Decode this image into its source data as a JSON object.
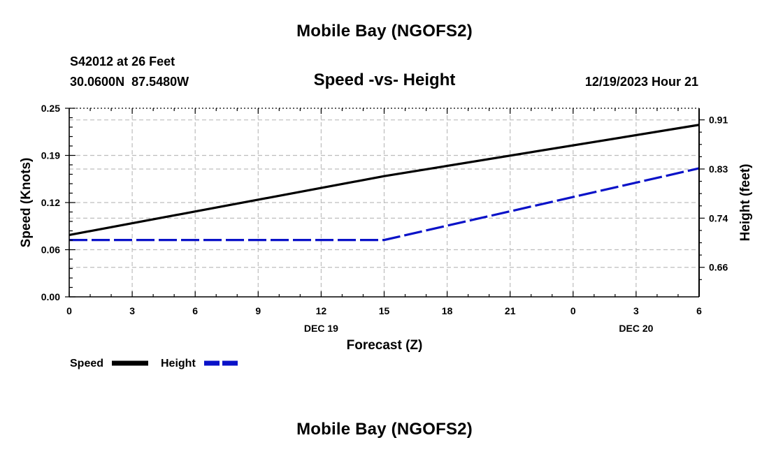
{
  "header": {
    "title": "Mobile Bay (NGOFS2)",
    "station": "S42012 at 26 Feet",
    "coords": "30.0600N  87.5480W",
    "subtitle": "Speed -vs- Height",
    "date": "12/19/2023 Hour 21"
  },
  "footer": {
    "title": "Mobile Bay (NGOFS2)"
  },
  "colors": {
    "speed": "#000000",
    "height": "#0a12c8",
    "grid": "#bdbdbd"
  },
  "chart_data": {
    "type": "line",
    "title": "Speed -vs- Height",
    "xlabel": "Forecast (Z)",
    "ylabel": "Speed (Knots)",
    "y2label": "Height (feet)",
    "x": [
      0,
      3,
      6,
      9,
      12,
      15,
      18,
      21,
      24,
      27,
      30
    ],
    "xlim": [
      0,
      30
    ],
    "ylim": [
      0,
      0.25
    ],
    "y2lim": [
      0.6055,
      0.9293
    ],
    "x_tick_labels": [
      "0",
      "3",
      "6",
      "9",
      "12",
      "15",
      "18",
      "21",
      "0",
      "3",
      "6"
    ],
    "x_day_labels": [
      {
        "label": "DEC 19",
        "x": 12
      },
      {
        "label": "DEC 20",
        "x": 27
      }
    ],
    "y_ticks": [
      "0.00",
      "0.06",
      "0.12",
      "0.19",
      "0.25"
    ],
    "y_tick_values": [
      0.0,
      0.0625,
      0.125,
      0.1875,
      0.25
    ],
    "y2_ticks": [
      "0.66",
      "0.74",
      "0.83",
      "0.91"
    ],
    "y2_tick_values": [
      0.6562,
      0.7406,
      0.825,
      0.9093
    ],
    "grid": true,
    "legend_position": "bottom-left",
    "series": [
      {
        "name": "Speed",
        "axis": "left",
        "style": "solid",
        "x": [
          0,
          15,
          30
        ],
        "values": [
          0.082,
          0.16,
          0.228
        ]
      },
      {
        "name": "Height",
        "axis": "right",
        "style": "dashed",
        "x": [
          0,
          15,
          30
        ],
        "values": [
          0.7031,
          0.7031,
          0.8262
        ]
      }
    ]
  }
}
